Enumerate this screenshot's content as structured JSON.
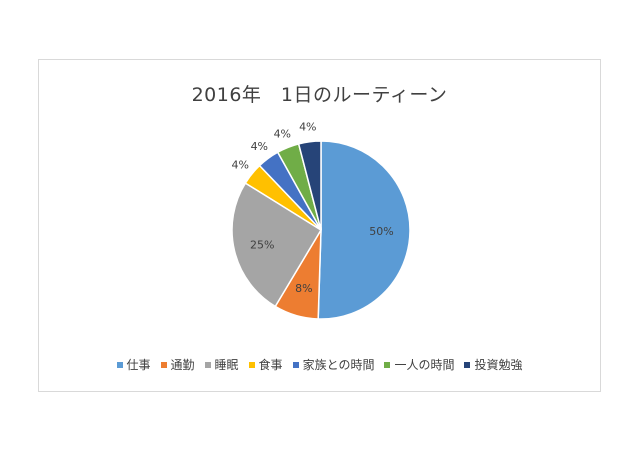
{
  "chart_data": {
    "type": "pie",
    "title": "2016年　1日のルーティーン",
    "categories": [
      "仕事",
      "通勤",
      "睡眠",
      "食事",
      "家族との時間",
      "一人の時間",
      "投資勉強"
    ],
    "values": [
      50,
      8,
      25,
      4,
      4,
      4,
      4
    ],
    "data_labels": [
      "50%",
      "8%",
      "25%",
      "4%",
      "4%",
      "4%",
      "4%"
    ],
    "colors": [
      "#5b9bd5",
      "#ed7d31",
      "#a5a5a5",
      "#ffc000",
      "#4472c4",
      "#70ad47",
      "#264478"
    ],
    "legend_position": "bottom",
    "start_angle_deg": 0,
    "direction": "clockwise"
  }
}
